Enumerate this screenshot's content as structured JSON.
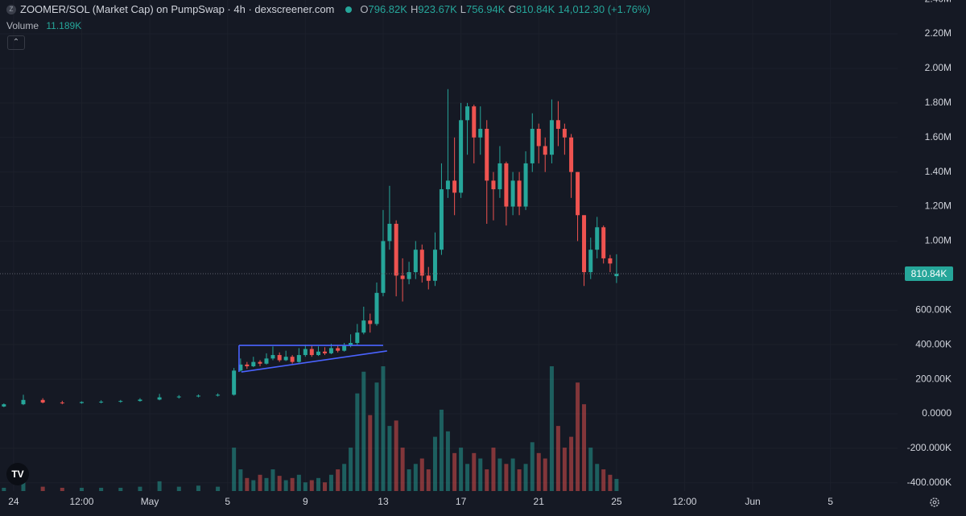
{
  "chart_data": {
    "type": "candlestick",
    "title": "ZOOMER/SOL (Market Cap) on PumpSwap · 4h · dexscreener.com",
    "ohlc_legend": [
      {
        "key": "O",
        "value": "796.82K"
      },
      {
        "key": "H",
        "value": "923.67K"
      },
      {
        "key": "L",
        "value": "756.94K"
      },
      {
        "key": "C",
        "value": "810.84K"
      }
    ],
    "change": "14,012.30 (+1.76%)",
    "volume_legend": {
      "name": "Volume",
      "value_label": "11.189K"
    },
    "up_color": "#26a69a",
    "down_color": "#ef5350",
    "x": [
      -0.5,
      0.5,
      1.5,
      2.5,
      3.5,
      4.5,
      5.5,
      6.5,
      7.5,
      8.5,
      9.5,
      10.5,
      11.33,
      11.67,
      12,
      12.33,
      12.67,
      13,
      13.33,
      13.67,
      14,
      14.33,
      14.67,
      15,
      15.33,
      15.67,
      16,
      16.33,
      16.67,
      17,
      17.33,
      17.67,
      18,
      18.33,
      18.67,
      19,
      19.33,
      19.67,
      20,
      20.33,
      20.67,
      21,
      21.33,
      21.67,
      22,
      22.33,
      22.67,
      23,
      23.33,
      23.67,
      24,
      24.33,
      24.67,
      25,
      25.33,
      25.67,
      26,
      26.33,
      26.67,
      27,
      27.33,
      27.67,
      28,
      28.33,
      28.67,
      29,
      29.33,
      29.67,
      30,
      30.33,
      30.67,
      31
    ],
    "open": [
      42000,
      55000,
      80000,
      65000,
      62000,
      68000,
      70000,
      74000,
      82000,
      95000,
      100000,
      105000,
      110000,
      250000,
      285000,
      275000,
      300000,
      290000,
      320000,
      340000,
      310000,
      330000,
      300000,
      340000,
      375000,
      340000,
      360000,
      350000,
      380000,
      365000,
      395000,
      410000,
      470000,
      540000,
      520000,
      700000,
      1000000,
      1100000,
      800000,
      780000,
      820000,
      950000,
      800000,
      770000,
      950000,
      1300000,
      1350000,
      1280000,
      1700000,
      1780000,
      1600000,
      1650000,
      1350000,
      1300000,
      1450000,
      1200000,
      1350000,
      1200000,
      1450000,
      1650000,
      1550000,
      1500000,
      1700000,
      1650000,
      1600000,
      1400000,
      1150000,
      820000,
      950000,
      1080000,
      900000,
      796820
    ],
    "high": [
      60000,
      110000,
      90000,
      75000,
      72000,
      78000,
      80000,
      90000,
      115000,
      108000,
      112000,
      118000,
      265000,
      320000,
      300000,
      330000,
      310000,
      350000,
      390000,
      355000,
      365000,
      340000,
      380000,
      400000,
      395000,
      390000,
      385000,
      405000,
      395000,
      410000,
      460000,
      520000,
      620000,
      580000,
      760000,
      1180000,
      1320000,
      1120000,
      900000,
      880000,
      1000000,
      980000,
      850000,
      1050000,
      1450000,
      1880000,
      1600000,
      1800000,
      1800000,
      1790000,
      1780000,
      1700000,
      1400000,
      1550000,
      1460000,
      1400000,
      1400000,
      1520000,
      1740000,
      1680000,
      1600000,
      1820000,
      1810000,
      1680000,
      1620000,
      1400000,
      1150000,
      1020000,
      1140000,
      1090000,
      920000,
      923670
    ],
    "low": [
      38000,
      50000,
      60000,
      55000,
      58000,
      60000,
      64000,
      70000,
      78000,
      88000,
      95000,
      100000,
      105000,
      245000,
      260000,
      270000,
      275000,
      285000,
      310000,
      300000,
      305000,
      290000,
      295000,
      330000,
      330000,
      335000,
      340000,
      345000,
      355000,
      360000,
      385000,
      400000,
      460000,
      470000,
      510000,
      680000,
      950000,
      680000,
      650000,
      750000,
      780000,
      760000,
      720000,
      740000,
      920000,
      1250000,
      1150000,
      1250000,
      1500000,
      1450000,
      1500000,
      1100000,
      1120000,
      1250000,
      1090000,
      1150000,
      1150000,
      1180000,
      1400000,
      1450000,
      1400000,
      1450000,
      1550000,
      1500000,
      1250000,
      1000000,
      740000,
      780000,
      900000,
      870000,
      820000,
      756940
    ],
    "close": [
      55000,
      80000,
      65000,
      62000,
      68000,
      70000,
      74000,
      82000,
      95000,
      100000,
      105000,
      110000,
      250000,
      285000,
      275000,
      300000,
      290000,
      320000,
      340000,
      310000,
      330000,
      300000,
      340000,
      375000,
      340000,
      360000,
      350000,
      380000,
      365000,
      395000,
      410000,
      470000,
      540000,
      520000,
      700000,
      1000000,
      1100000,
      800000,
      780000,
      820000,
      950000,
      800000,
      770000,
      950000,
      1300000,
      1350000,
      1280000,
      1700000,
      1780000,
      1600000,
      1650000,
      1350000,
      1300000,
      1450000,
      1200000,
      1350000,
      1200000,
      1450000,
      1650000,
      1550000,
      1500000,
      1700000,
      1650000,
      1600000,
      1400000,
      1150000,
      820000,
      950000,
      1080000,
      900000,
      870000,
      810840
    ],
    "volume": [
      3000,
      8000,
      4000,
      3000,
      3000,
      3000,
      3000,
      4000,
      9000,
      4000,
      5000,
      4000,
      40000,
      20000,
      12000,
      10000,
      15000,
      12000,
      20000,
      14000,
      10000,
      12000,
      15000,
      8000,
      10000,
      12000,
      8000,
      15000,
      20000,
      25000,
      40000,
      90000,
      110000,
      70000,
      100000,
      115000,
      60000,
      65000,
      40000,
      20000,
      25000,
      30000,
      20000,
      50000,
      75000,
      55000,
      35000,
      40000,
      25000,
      35000,
      30000,
      20000,
      40000,
      30000,
      25000,
      30000,
      20000,
      25000,
      45000,
      35000,
      30000,
      115000,
      60000,
      40000,
      50000,
      100000,
      80000,
      40000,
      25000,
      20000,
      15000,
      11189
    ],
    "last_price": {
      "value": 810840,
      "label": "810.84K"
    },
    "drawings": [
      {
        "color": "#4a63ff",
        "points": [
          [
            11.59,
            396000
          ],
          [
            19.0,
            396000
          ]
        ]
      },
      {
        "color": "#4a63ff",
        "points": [
          [
            11.71,
            242000
          ],
          [
            19.2,
            364000
          ]
        ]
      },
      {
        "color": "#4a63ff",
        "points": [
          [
            11.59,
            396000
          ],
          [
            11.59,
            242000
          ]
        ]
      }
    ],
    "xlim": [
      -0.7,
      45.45
    ],
    "ylim": [
      -447600,
      2396000
    ],
    "xticks": [
      {
        "value": 0,
        "label": "24"
      },
      {
        "value": 3.5,
        "label": "12:00"
      },
      {
        "value": 7,
        "label": "May"
      },
      {
        "value": 11,
        "label": "5"
      },
      {
        "value": 15,
        "label": "9"
      },
      {
        "value": 19,
        "label": "13"
      },
      {
        "value": 23,
        "label": "17"
      },
      {
        "value": 27,
        "label": "21"
      },
      {
        "value": 31,
        "label": "25"
      },
      {
        "value": 34.5,
        "label": "12:00"
      },
      {
        "value": 38,
        "label": "Jun"
      },
      {
        "value": 42,
        "label": "5"
      }
    ],
    "yticks": [
      {
        "value": -400000,
        "label": "-400.000K"
      },
      {
        "value": -200000,
        "label": "-200.000K"
      },
      {
        "value": 0,
        "label": "0.0000"
      },
      {
        "value": 200000,
        "label": "200.00K"
      },
      {
        "value": 400000,
        "label": "400.00K"
      },
      {
        "value": 600000,
        "label": "600.00K"
      },
      {
        "value": 1000000,
        "label": "1.00M"
      },
      {
        "value": 1200000,
        "label": "1.20M"
      },
      {
        "value": 1400000,
        "label": "1.40M"
      },
      {
        "value": 1600000,
        "label": "1.60M"
      },
      {
        "value": 1800000,
        "label": "1.80M"
      },
      {
        "value": 2000000,
        "label": "2.00M"
      },
      {
        "value": 2200000,
        "label": "2.20M"
      },
      {
        "value": 2400000,
        "label": "2.40M"
      }
    ],
    "grid": true
  }
}
